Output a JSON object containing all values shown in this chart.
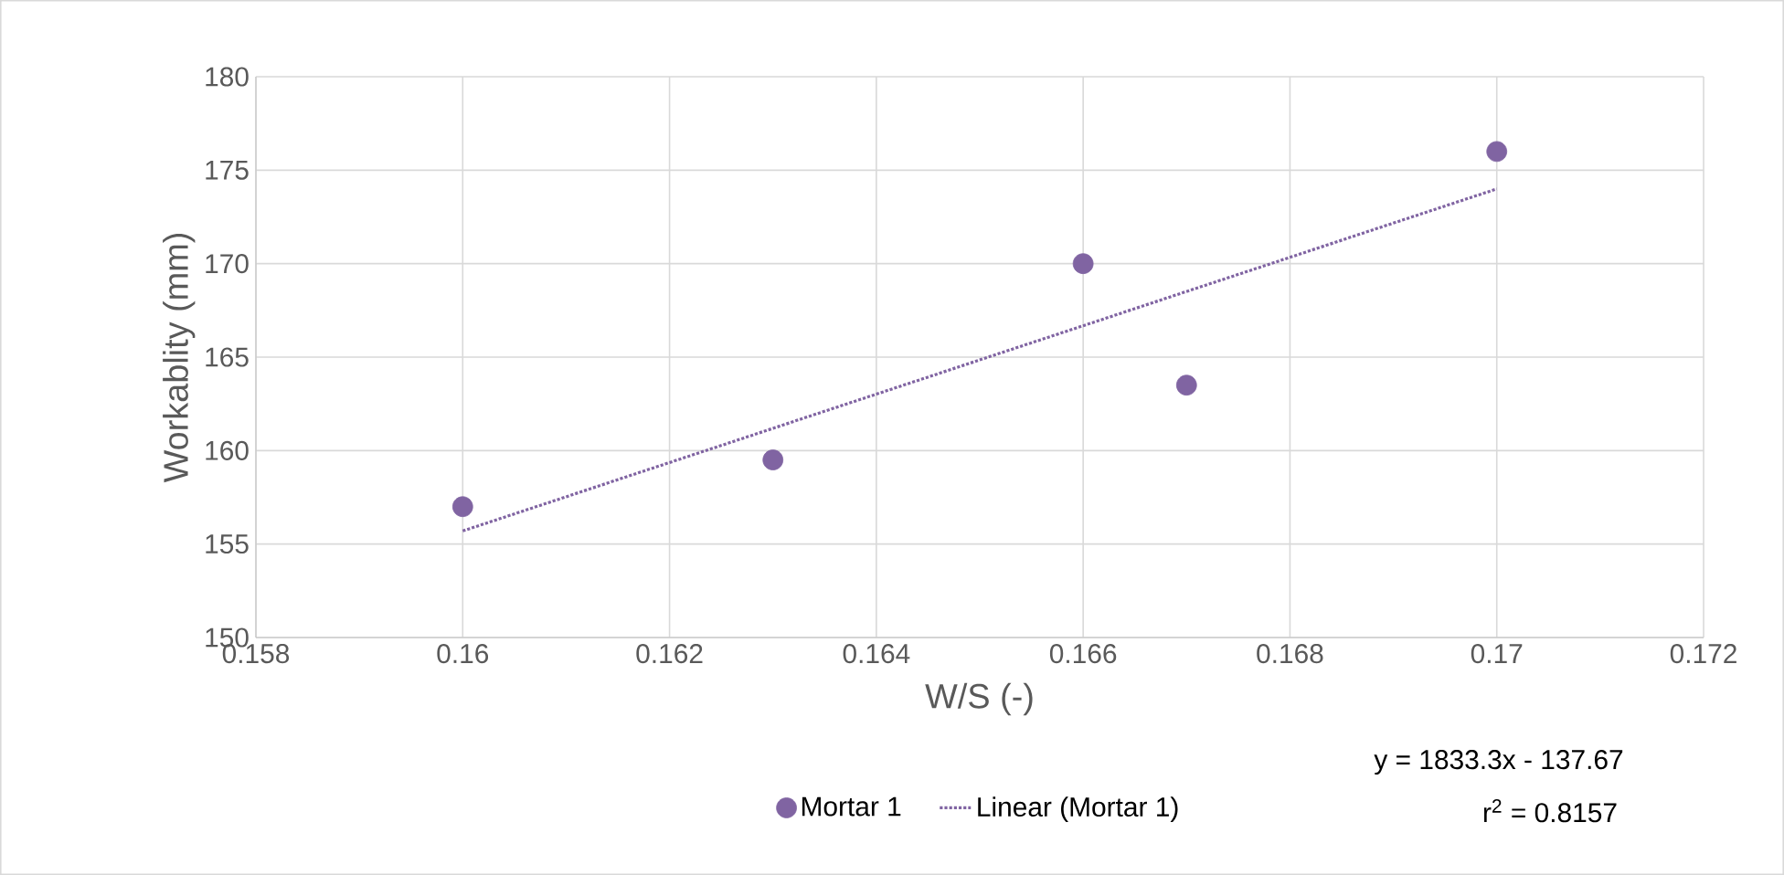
{
  "chart_data": {
    "type": "scatter",
    "xlabel": "W/S (-)",
    "ylabel": "Workablity (mm)",
    "xlim": [
      0.158,
      0.172
    ],
    "xticks": [
      0.158,
      0.16,
      0.162,
      0.164,
      0.166,
      0.168,
      0.17,
      0.172
    ],
    "ylim": [
      150,
      180
    ],
    "yticks": [
      150,
      155,
      160,
      165,
      170,
      175,
      180
    ],
    "grid": true,
    "legend": "bottom",
    "series": [
      {
        "name": "Mortar 1",
        "marker": "circle",
        "color": "#8064a2",
        "x": [
          0.16,
          0.163,
          0.166,
          0.167,
          0.17
        ],
        "values": [
          157,
          159.5,
          170,
          163.5,
          176
        ]
      },
      {
        "name": "Linear (Mortar 1)",
        "type": "line",
        "line_style": "dotted",
        "marker": "none",
        "color": "#8064a2",
        "x": [
          0.16,
          0.17
        ],
        "values": [
          155.7,
          174
        ]
      }
    ],
    "annotations": [
      "y = 1833.3x - 137.67",
      "r$^{2}$ = 0.8157"
    ]
  }
}
